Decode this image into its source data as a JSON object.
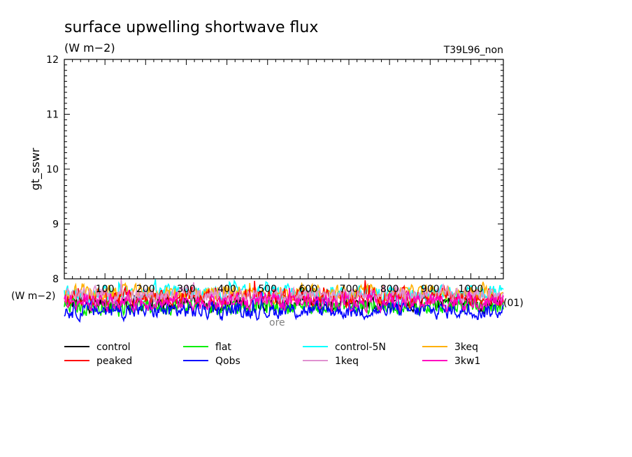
{
  "chart_data": {
    "type": "line",
    "title": "surface upwelling shortwave flux",
    "units": "(W m−2)",
    "experiment": "T39L96_non",
    "ylabel": "gt_sswr",
    "y_unit_label": "(W m−2)",
    "x_tick_labels": [
      "100",
      "200",
      "300",
      "400",
      "500",
      "600",
      "700",
      "800",
      "900",
      "1000"
    ],
    "x_axis_end_label": "(01)",
    "ylim": [
      8,
      12
    ],
    "y_ticks": [
      "8",
      "9",
      "10",
      "11",
      "12"
    ],
    "xlim": [
      0,
      1080
    ],
    "grid": false,
    "legend_position": "bottom",
    "series": [
      {
        "name": "control",
        "color": "#000000",
        "mean": 7.55,
        "spread": 0.22
      },
      {
        "name": "flat",
        "color": "#00ee00",
        "mean": 7.5,
        "spread": 0.22
      },
      {
        "name": "control-5N",
        "color": "#00ffff",
        "mean": 7.72,
        "spread": 0.22
      },
      {
        "name": "3keq",
        "color": "#ffb000",
        "mean": 7.73,
        "spread": 0.22
      },
      {
        "name": "peaked",
        "color": "#ff0000",
        "mean": 7.66,
        "spread": 0.23
      },
      {
        "name": "Qobs",
        "color": "#0000ff",
        "mean": 7.42,
        "spread": 0.22
      },
      {
        "name": "1keq",
        "color": "#e090d0",
        "mean": 7.7,
        "spread": 0.22
      },
      {
        "name": "3kw1",
        "color": "#ff00c0",
        "mean": 7.58,
        "spread": 0.22
      }
    ],
    "x_label_partial": "ore"
  }
}
